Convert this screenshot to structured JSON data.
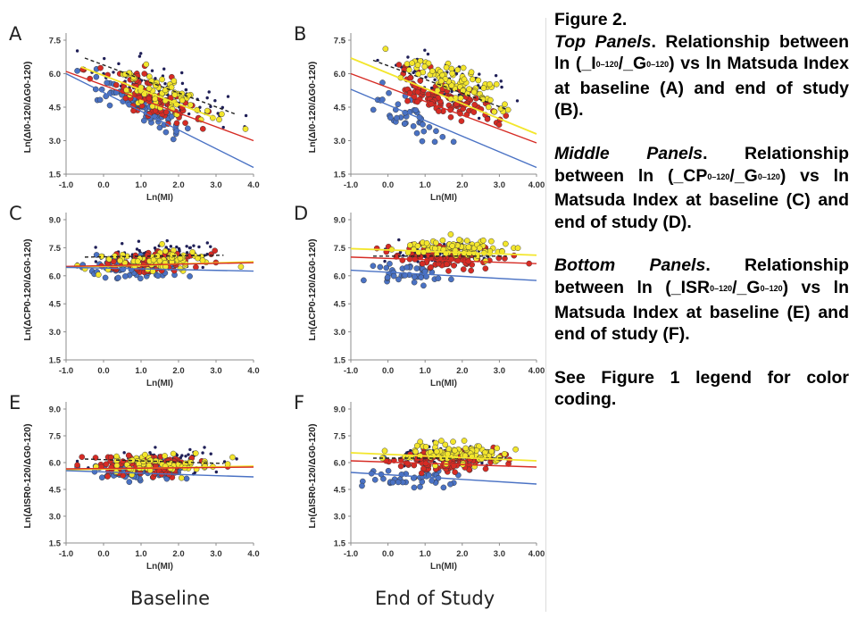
{
  "caption": {
    "title": "Figure 2.",
    "top": {
      "heading": "Top Panels",
      "pre": ". Relationship between ln (",
      "num": "_I",
      "num_sub": "0–120",
      "mid": "/",
      "den": "_G",
      "den_sub": "0–120",
      "post": ") vs ln Matsuda Index at baseline (A) and end of study (B)."
    },
    "middle": {
      "heading": "Middle Panels",
      "pre": ". Relationship between ln (",
      "num": "_CP",
      "num_sub": "0–120",
      "mid": "/",
      "den": "_G",
      "den_sub": "0–120",
      "post": ") vs ln Matsuda Index at baseline (C) and end of study (D)."
    },
    "bottom": {
      "heading": "Bottom Panels",
      "pre": ". Relationship between ln (",
      "num": "_ISR",
      "num_sub": "0–120",
      "mid": "/",
      "den": "_G",
      "den_sub": "0–120",
      "post": ") vs ln Matsuda Index at baseline (E) and end of study (F)."
    },
    "legend_note": "See Figure 1 legend for color coding."
  },
  "column_labels": {
    "left": "Baseline",
    "right": "End of Study"
  },
  "colors": {
    "blue": "#4a72c4",
    "red": "#d62b24",
    "yellow": "#f3e62c",
    "navy": "#1f1f57",
    "axis": "#8c8c8c",
    "tick_text": "#333333"
  },
  "chart_data": [
    {
      "id": "A",
      "type": "scatter",
      "xlabel": "Ln(MI)",
      "ylabel": "Ln(ΔI0-120/ΔG0-120)",
      "xlim": [
        -1.0,
        4.0
      ],
      "ylim": [
        1.5,
        7.5
      ],
      "xticks": [
        "-1.0",
        "0.0",
        "1.0",
        "2.0",
        "3.0",
        "4.0"
      ],
      "yticks": [
        "1.5",
        "3.0",
        "4.5",
        "6.0",
        "7.5"
      ],
      "clusters": [
        {
          "group": "navy",
          "cx": 1.5,
          "cy": 5.3,
          "sx": 0.8,
          "sy": 0.75,
          "slope": -0.55,
          "n": 90,
          "seed": 11
        },
        {
          "group": "yellow",
          "cx": 1.5,
          "cy": 5.1,
          "sx": 0.75,
          "sy": 0.7,
          "slope": -0.6,
          "n": 70,
          "seed": 12
        },
        {
          "group": "red",
          "cx": 1.2,
          "cy": 4.9,
          "sx": 0.7,
          "sy": 0.65,
          "slope": -0.6,
          "n": 90,
          "seed": 13
        },
        {
          "group": "blue",
          "cx": 0.9,
          "cy": 4.6,
          "sx": 0.65,
          "sy": 0.55,
          "slope": -0.9,
          "n": 80,
          "seed": 14
        }
      ],
      "fit_lines": [
        {
          "group": "navy",
          "x": [
            -0.5,
            3.5
          ],
          "y": [
            6.7,
            4.2
          ],
          "dashed": true
        },
        {
          "group": "yellow",
          "x": [
            -0.6,
            3.0
          ],
          "y": [
            6.3,
            4.0
          ],
          "dashed": false
        },
        {
          "group": "red",
          "x": [
            -1.0,
            4.0
          ],
          "y": [
            6.1,
            3.0
          ],
          "dashed": false
        },
        {
          "group": "blue",
          "x": [
            -1.0,
            4.0
          ],
          "y": [
            6.0,
            1.8
          ],
          "dashed": false
        }
      ]
    },
    {
      "id": "B",
      "type": "scatter",
      "xlabel": "Ln(MI)",
      "ylabel": "Ln(ΔI0-120/ΔG0-120)",
      "xlim": [
        -1.0,
        4.0
      ],
      "ylim": [
        1.5,
        7.5
      ],
      "xticks": [
        "-1.0",
        "0.0",
        "1.0",
        "2.0",
        "3.0",
        "4.00"
      ],
      "yticks": [
        "1.5",
        "3.0",
        "4.5",
        "6.0",
        "7.5"
      ],
      "clusters": [
        {
          "group": "navy",
          "cx": 1.6,
          "cy": 5.7,
          "sx": 0.75,
          "sy": 0.75,
          "slope": -0.5,
          "n": 80,
          "seed": 21
        },
        {
          "group": "yellow",
          "cx": 1.8,
          "cy": 5.6,
          "sx": 0.7,
          "sy": 0.6,
          "slope": -0.65,
          "n": 90,
          "seed": 22
        },
        {
          "group": "red",
          "cx": 1.5,
          "cy": 5.0,
          "sx": 0.7,
          "sy": 0.7,
          "slope": -0.7,
          "n": 110,
          "seed": 23
        },
        {
          "group": "blue",
          "cx": 0.6,
          "cy": 4.0,
          "sx": 0.55,
          "sy": 0.6,
          "slope": -0.8,
          "n": 40,
          "seed": 24
        }
      ],
      "fit_lines": [
        {
          "group": "navy",
          "x": [
            -0.4,
            3.2
          ],
          "y": [
            6.6,
            4.4
          ],
          "dashed": true
        },
        {
          "group": "yellow",
          "x": [
            -1.0,
            4.0
          ],
          "y": [
            6.7,
            3.3
          ],
          "dashed": false
        },
        {
          "group": "red",
          "x": [
            -1.0,
            4.0
          ],
          "y": [
            6.0,
            2.9
          ],
          "dashed": false
        },
        {
          "group": "blue",
          "x": [
            -1.0,
            4.0
          ],
          "y": [
            5.3,
            1.8
          ],
          "dashed": false
        }
      ]
    },
    {
      "id": "C",
      "type": "scatter",
      "xlabel": "Ln(MI)",
      "ylabel": "Ln(ΔCP0-120/ΔG0-120)",
      "xlim": [
        -1.0,
        4.0
      ],
      "ylim": [
        1.5,
        9.0
      ],
      "xticks": [
        "-1.0",
        "0.0",
        "1.0",
        "2.0",
        "3.0",
        "4.0"
      ],
      "yticks": [
        "1.5",
        "3.0",
        "4.5",
        "6.0",
        "7.5",
        "9.0"
      ],
      "clusters": [
        {
          "group": "navy",
          "cx": 1.5,
          "cy": 7.1,
          "sx": 0.8,
          "sy": 0.5,
          "slope": 0.1,
          "n": 80,
          "seed": 31
        },
        {
          "group": "yellow",
          "cx": 1.5,
          "cy": 6.8,
          "sx": 0.75,
          "sy": 0.45,
          "slope": 0.05,
          "n": 70,
          "seed": 32
        },
        {
          "group": "red",
          "cx": 1.2,
          "cy": 6.7,
          "sx": 0.7,
          "sy": 0.5,
          "slope": 0.05,
          "n": 90,
          "seed": 33
        },
        {
          "group": "blue",
          "cx": 0.9,
          "cy": 6.4,
          "sx": 0.65,
          "sy": 0.45,
          "slope": -0.05,
          "n": 80,
          "seed": 34
        }
      ],
      "fit_lines": [
        {
          "group": "navy",
          "x": [
            -0.5,
            3.2
          ],
          "y": [
            7.0,
            7.1
          ],
          "dashed": true
        },
        {
          "group": "yellow",
          "x": [
            -1.0,
            4.0
          ],
          "y": [
            6.45,
            6.75
          ],
          "dashed": false
        },
        {
          "group": "red",
          "x": [
            -1.0,
            4.0
          ],
          "y": [
            6.5,
            6.7
          ],
          "dashed": false
        },
        {
          "group": "blue",
          "x": [
            -1.0,
            4.0
          ],
          "y": [
            6.45,
            6.25
          ],
          "dashed": false
        }
      ]
    },
    {
      "id": "D",
      "type": "scatter",
      "xlabel": "Ln(MI)",
      "ylabel": "Ln(ΔCP0-120/ΔG0-120)",
      "xlim": [
        -1.0,
        4.0
      ],
      "ylim": [
        1.5,
        9.0
      ],
      "xticks": [
        "-1.0",
        "0.0",
        "1.0",
        "2.0",
        "3.0",
        "4.00"
      ],
      "yticks": [
        "1.5",
        "3.0",
        "4.5",
        "6.0",
        "7.5",
        "9.0"
      ],
      "clusters": [
        {
          "group": "navy",
          "cx": 1.6,
          "cy": 7.3,
          "sx": 0.75,
          "sy": 0.5,
          "slope": 0.0,
          "n": 80,
          "seed": 41
        },
        {
          "group": "yellow",
          "cx": 1.8,
          "cy": 7.5,
          "sx": 0.7,
          "sy": 0.45,
          "slope": -0.05,
          "n": 90,
          "seed": 42
        },
        {
          "group": "red",
          "cx": 1.5,
          "cy": 7.0,
          "sx": 0.7,
          "sy": 0.5,
          "slope": -0.05,
          "n": 110,
          "seed": 43
        },
        {
          "group": "blue",
          "cx": 0.6,
          "cy": 6.1,
          "sx": 0.55,
          "sy": 0.45,
          "slope": -0.1,
          "n": 40,
          "seed": 44
        }
      ],
      "fit_lines": [
        {
          "group": "navy",
          "x": [
            -0.4,
            3.2
          ],
          "y": [
            7.05,
            7.05
          ],
          "dashed": true
        },
        {
          "group": "yellow",
          "x": [
            -1.0,
            4.0
          ],
          "y": [
            7.45,
            7.1
          ],
          "dashed": false
        },
        {
          "group": "red",
          "x": [
            -1.0,
            4.0
          ],
          "y": [
            7.0,
            6.65
          ],
          "dashed": false
        },
        {
          "group": "blue",
          "x": [
            -1.0,
            4.0
          ],
          "y": [
            6.3,
            5.75
          ],
          "dashed": false
        }
      ]
    },
    {
      "id": "E",
      "type": "scatter",
      "xlabel": "Ln(MI)",
      "ylabel": "Ln(ΔISR0-120/ΔG0-120)",
      "xlim": [
        -1.0,
        4.0
      ],
      "ylim": [
        1.5,
        9.0
      ],
      "xticks": [
        "-1.0",
        "0.0",
        "1.0",
        "2.0",
        "3.0",
        "4.0"
      ],
      "yticks": [
        "1.5",
        "3.0",
        "4.5",
        "6.0",
        "7.5",
        "9.0"
      ],
      "clusters": [
        {
          "group": "navy",
          "cx": 1.5,
          "cy": 6.1,
          "sx": 0.8,
          "sy": 0.5,
          "slope": 0.05,
          "n": 80,
          "seed": 51
        },
        {
          "group": "yellow",
          "cx": 1.5,
          "cy": 5.9,
          "sx": 0.75,
          "sy": 0.45,
          "slope": 0.05,
          "n": 70,
          "seed": 52
        },
        {
          "group": "red",
          "cx": 1.2,
          "cy": 5.8,
          "sx": 0.7,
          "sy": 0.5,
          "slope": 0.0,
          "n": 90,
          "seed": 53
        },
        {
          "group": "blue",
          "cx": 0.9,
          "cy": 5.5,
          "sx": 0.65,
          "sy": 0.45,
          "slope": -0.05,
          "n": 80,
          "seed": 54
        }
      ],
      "fit_lines": [
        {
          "group": "navy",
          "x": [
            -0.5,
            3.2
          ],
          "y": [
            6.2,
            5.95
          ],
          "dashed": true
        },
        {
          "group": "yellow",
          "x": [
            -1.0,
            4.0
          ],
          "y": [
            5.6,
            5.8
          ],
          "dashed": false
        },
        {
          "group": "red",
          "x": [
            -1.0,
            4.0
          ],
          "y": [
            5.65,
            5.75
          ],
          "dashed": false
        },
        {
          "group": "blue",
          "x": [
            -1.0,
            4.0
          ],
          "y": [
            5.55,
            5.2
          ],
          "dashed": false
        }
      ]
    },
    {
      "id": "F",
      "type": "scatter",
      "xlabel": "Ln(MI)",
      "ylabel": "Ln(ΔISR0-120/ΔG0-120)",
      "xlim": [
        -1.0,
        4.0
      ],
      "ylim": [
        1.5,
        9.0
      ],
      "xticks": [
        "-1.0",
        "0.0",
        "1.0",
        "2.0",
        "3.0",
        "4.00"
      ],
      "yticks": [
        "1.5",
        "3.0",
        "4.5",
        "6.0",
        "7.5",
        "9.0"
      ],
      "clusters": [
        {
          "group": "navy",
          "cx": 1.6,
          "cy": 6.4,
          "sx": 0.75,
          "sy": 0.5,
          "slope": 0.0,
          "n": 80,
          "seed": 61
        },
        {
          "group": "yellow",
          "cx": 1.8,
          "cy": 6.5,
          "sx": 0.7,
          "sy": 0.5,
          "slope": -0.05,
          "n": 90,
          "seed": 62
        },
        {
          "group": "red",
          "cx": 1.5,
          "cy": 6.1,
          "sx": 0.7,
          "sy": 0.5,
          "slope": -0.05,
          "n": 110,
          "seed": 63
        },
        {
          "group": "blue",
          "cx": 0.6,
          "cy": 5.2,
          "sx": 0.55,
          "sy": 0.5,
          "slope": -0.1,
          "n": 40,
          "seed": 64
        }
      ],
      "fit_lines": [
        {
          "group": "navy",
          "x": [
            -0.4,
            3.2
          ],
          "y": [
            6.25,
            6.25
          ],
          "dashed": true
        },
        {
          "group": "yellow",
          "x": [
            -1.0,
            4.0
          ],
          "y": [
            6.55,
            6.1
          ],
          "dashed": false
        },
        {
          "group": "red",
          "x": [
            -1.0,
            4.0
          ],
          "y": [
            6.1,
            5.75
          ],
          "dashed": false
        },
        {
          "group": "blue",
          "x": [
            -1.0,
            4.0
          ],
          "y": [
            5.45,
            4.8
          ],
          "dashed": false
        }
      ]
    }
  ]
}
